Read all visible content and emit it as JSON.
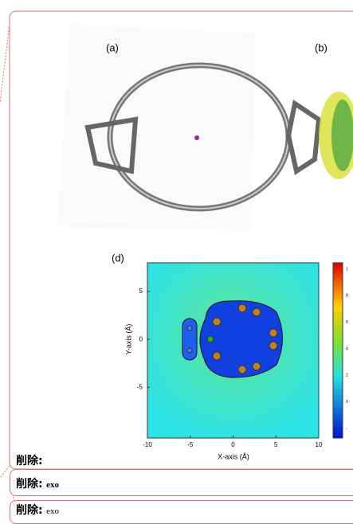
{
  "figure": {
    "panels": [
      "(a)",
      "(b)",
      "(d)"
    ],
    "plot": {
      "y_label": "Y-axis (Å)",
      "x_label": "X-axis (Å)",
      "xlim": [
        -10,
        10
      ],
      "ylim": [
        -10.3,
        8
      ],
      "xticks": [
        -10,
        -5,
        0,
        5,
        10
      ],
      "yticks": [
        5,
        0,
        -5
      ],
      "colorbar_labels": [
        "1",
        "8",
        "6",
        "4",
        "2",
        "0",
        "-"
      ]
    }
  },
  "comments": [
    {
      "label": "削除:",
      "text": ""
    },
    {
      "label": "削除:",
      "text": "exo"
    },
    {
      "label": "削除:",
      "text": "exo"
    }
  ]
}
